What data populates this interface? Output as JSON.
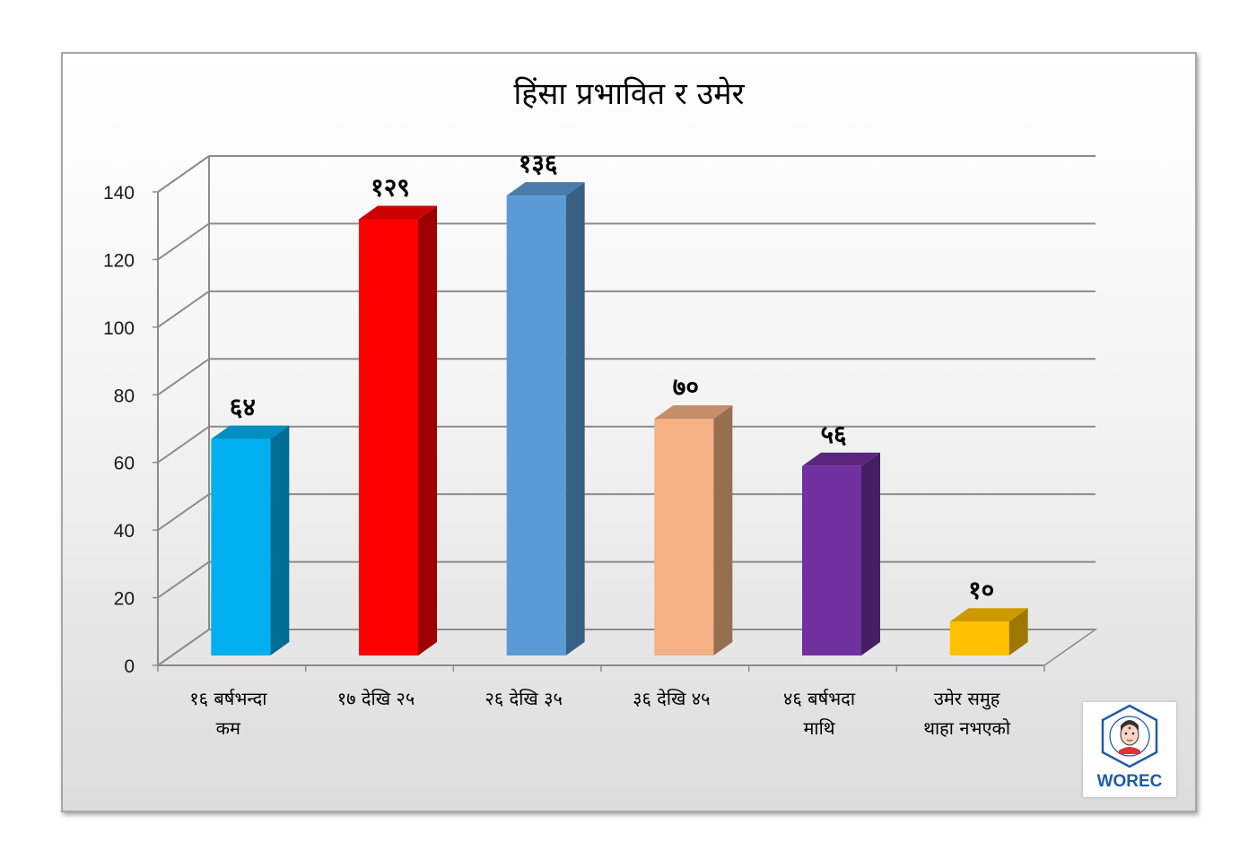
{
  "chart_data": {
    "type": "bar",
    "title": "हिंसा प्रभावित र उमेर",
    "categories": [
      [
        "१६ बर्षभन्दा",
        "कम"
      ],
      [
        "१७ देखि २५"
      ],
      [
        "२६ देखि ३५"
      ],
      [
        "३६ देखि ४५"
      ],
      [
        "४६ बर्षभदा",
        "माथि"
      ],
      [
        "उमेर समुह",
        "थाहा नभएको"
      ]
    ],
    "values": [
      64,
      129,
      136,
      70,
      56,
      10
    ],
    "data_labels": [
      "६४",
      "१२९",
      "१३६",
      "७०",
      "५६",
      "१०"
    ],
    "y_ticks": [
      "0",
      "20",
      "40",
      "60",
      "80",
      "100",
      "120",
      "140"
    ],
    "ylim": [
      0,
      140
    ],
    "grid": true,
    "legend": "none",
    "colors": [
      "#00b0f0",
      "#ff0000",
      "#5b9bd5",
      "#f4b183",
      "#7030a0",
      "#ffc000"
    ]
  },
  "logo": {
    "text": "WOREC",
    "ring_text": "REHABILITATION · WOMEN · EDUCATION · NEPAL 1991"
  }
}
